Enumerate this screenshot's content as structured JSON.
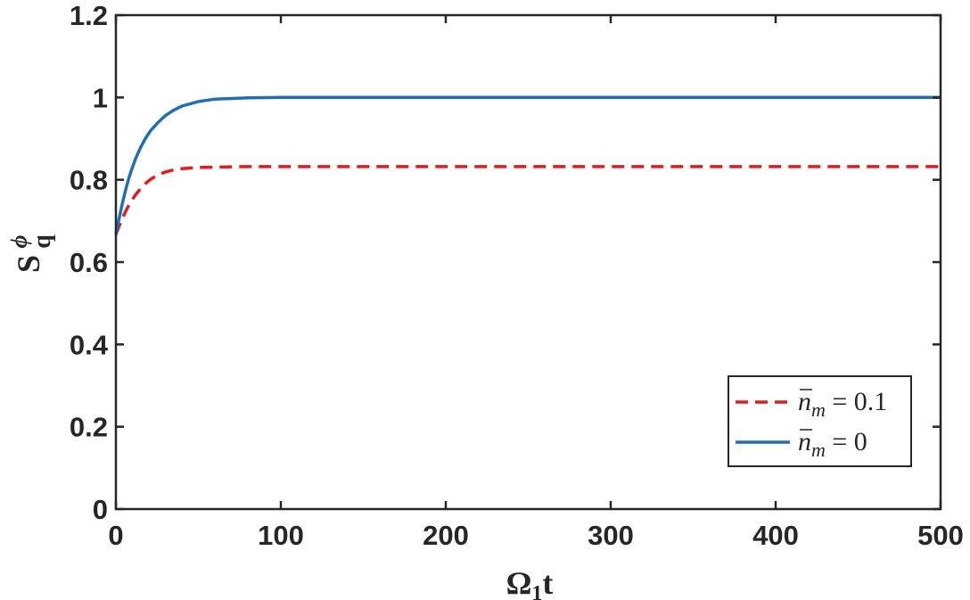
{
  "chart_data": {
    "type": "line",
    "xlabel": {
      "main": "Ω",
      "sub": "1",
      "tail": "t"
    },
    "ylabel": {
      "main": "S",
      "sub": "q",
      "sup": "ϕ"
    },
    "xlim": [
      0,
      500
    ],
    "ylim": [
      0,
      1.2
    ],
    "xticks": [
      0,
      100,
      200,
      300,
      400,
      500
    ],
    "xtick_labels": [
      "0",
      "100",
      "200",
      "300",
      "400",
      "500"
    ],
    "yticks": [
      0,
      0.2,
      0.4,
      0.6,
      0.8,
      1.0,
      1.2
    ],
    "ytick_labels": [
      "0",
      "0.2",
      "0.4",
      "0.6",
      "0.8",
      "1",
      "1.2"
    ],
    "grid": false,
    "legend_position": "bottom-right",
    "series": [
      {
        "name": "n̄_m = 0.1",
        "legend": {
          "var": "n",
          "sub": "m",
          "rest": " = 0.1"
        },
        "color": "#e41a1c",
        "style": "dashed",
        "x": [
          0,
          2,
          4,
          6,
          8,
          10,
          12,
          15,
          18,
          21,
          25,
          30,
          35,
          40,
          50,
          60,
          80,
          100,
          150,
          200,
          300,
          400,
          500
        ],
        "y": [
          0.667,
          0.688,
          0.707,
          0.724,
          0.739,
          0.752,
          0.764,
          0.779,
          0.791,
          0.801,
          0.811,
          0.819,
          0.824,
          0.827,
          0.83,
          0.831,
          0.832,
          0.832,
          0.832,
          0.832,
          0.832,
          0.832,
          0.832
        ]
      },
      {
        "name": "n̄_m = 0",
        "legend": {
          "var": "n",
          "sub": "m",
          "rest": " = 0"
        },
        "color": "#1f6fb4",
        "style": "solid",
        "x": [
          0,
          2,
          4,
          6,
          8,
          10,
          12,
          15,
          18,
          21,
          25,
          30,
          35,
          40,
          50,
          60,
          80,
          100,
          150,
          200,
          300,
          400,
          500
        ],
        "y": [
          0.667,
          0.707,
          0.744,
          0.777,
          0.806,
          0.83,
          0.852,
          0.879,
          0.901,
          0.919,
          0.937,
          0.956,
          0.969,
          0.979,
          0.99,
          0.996,
          0.999,
          1.0,
          1.0,
          1.0,
          1.0,
          1.0,
          1.0
        ]
      }
    ]
  }
}
